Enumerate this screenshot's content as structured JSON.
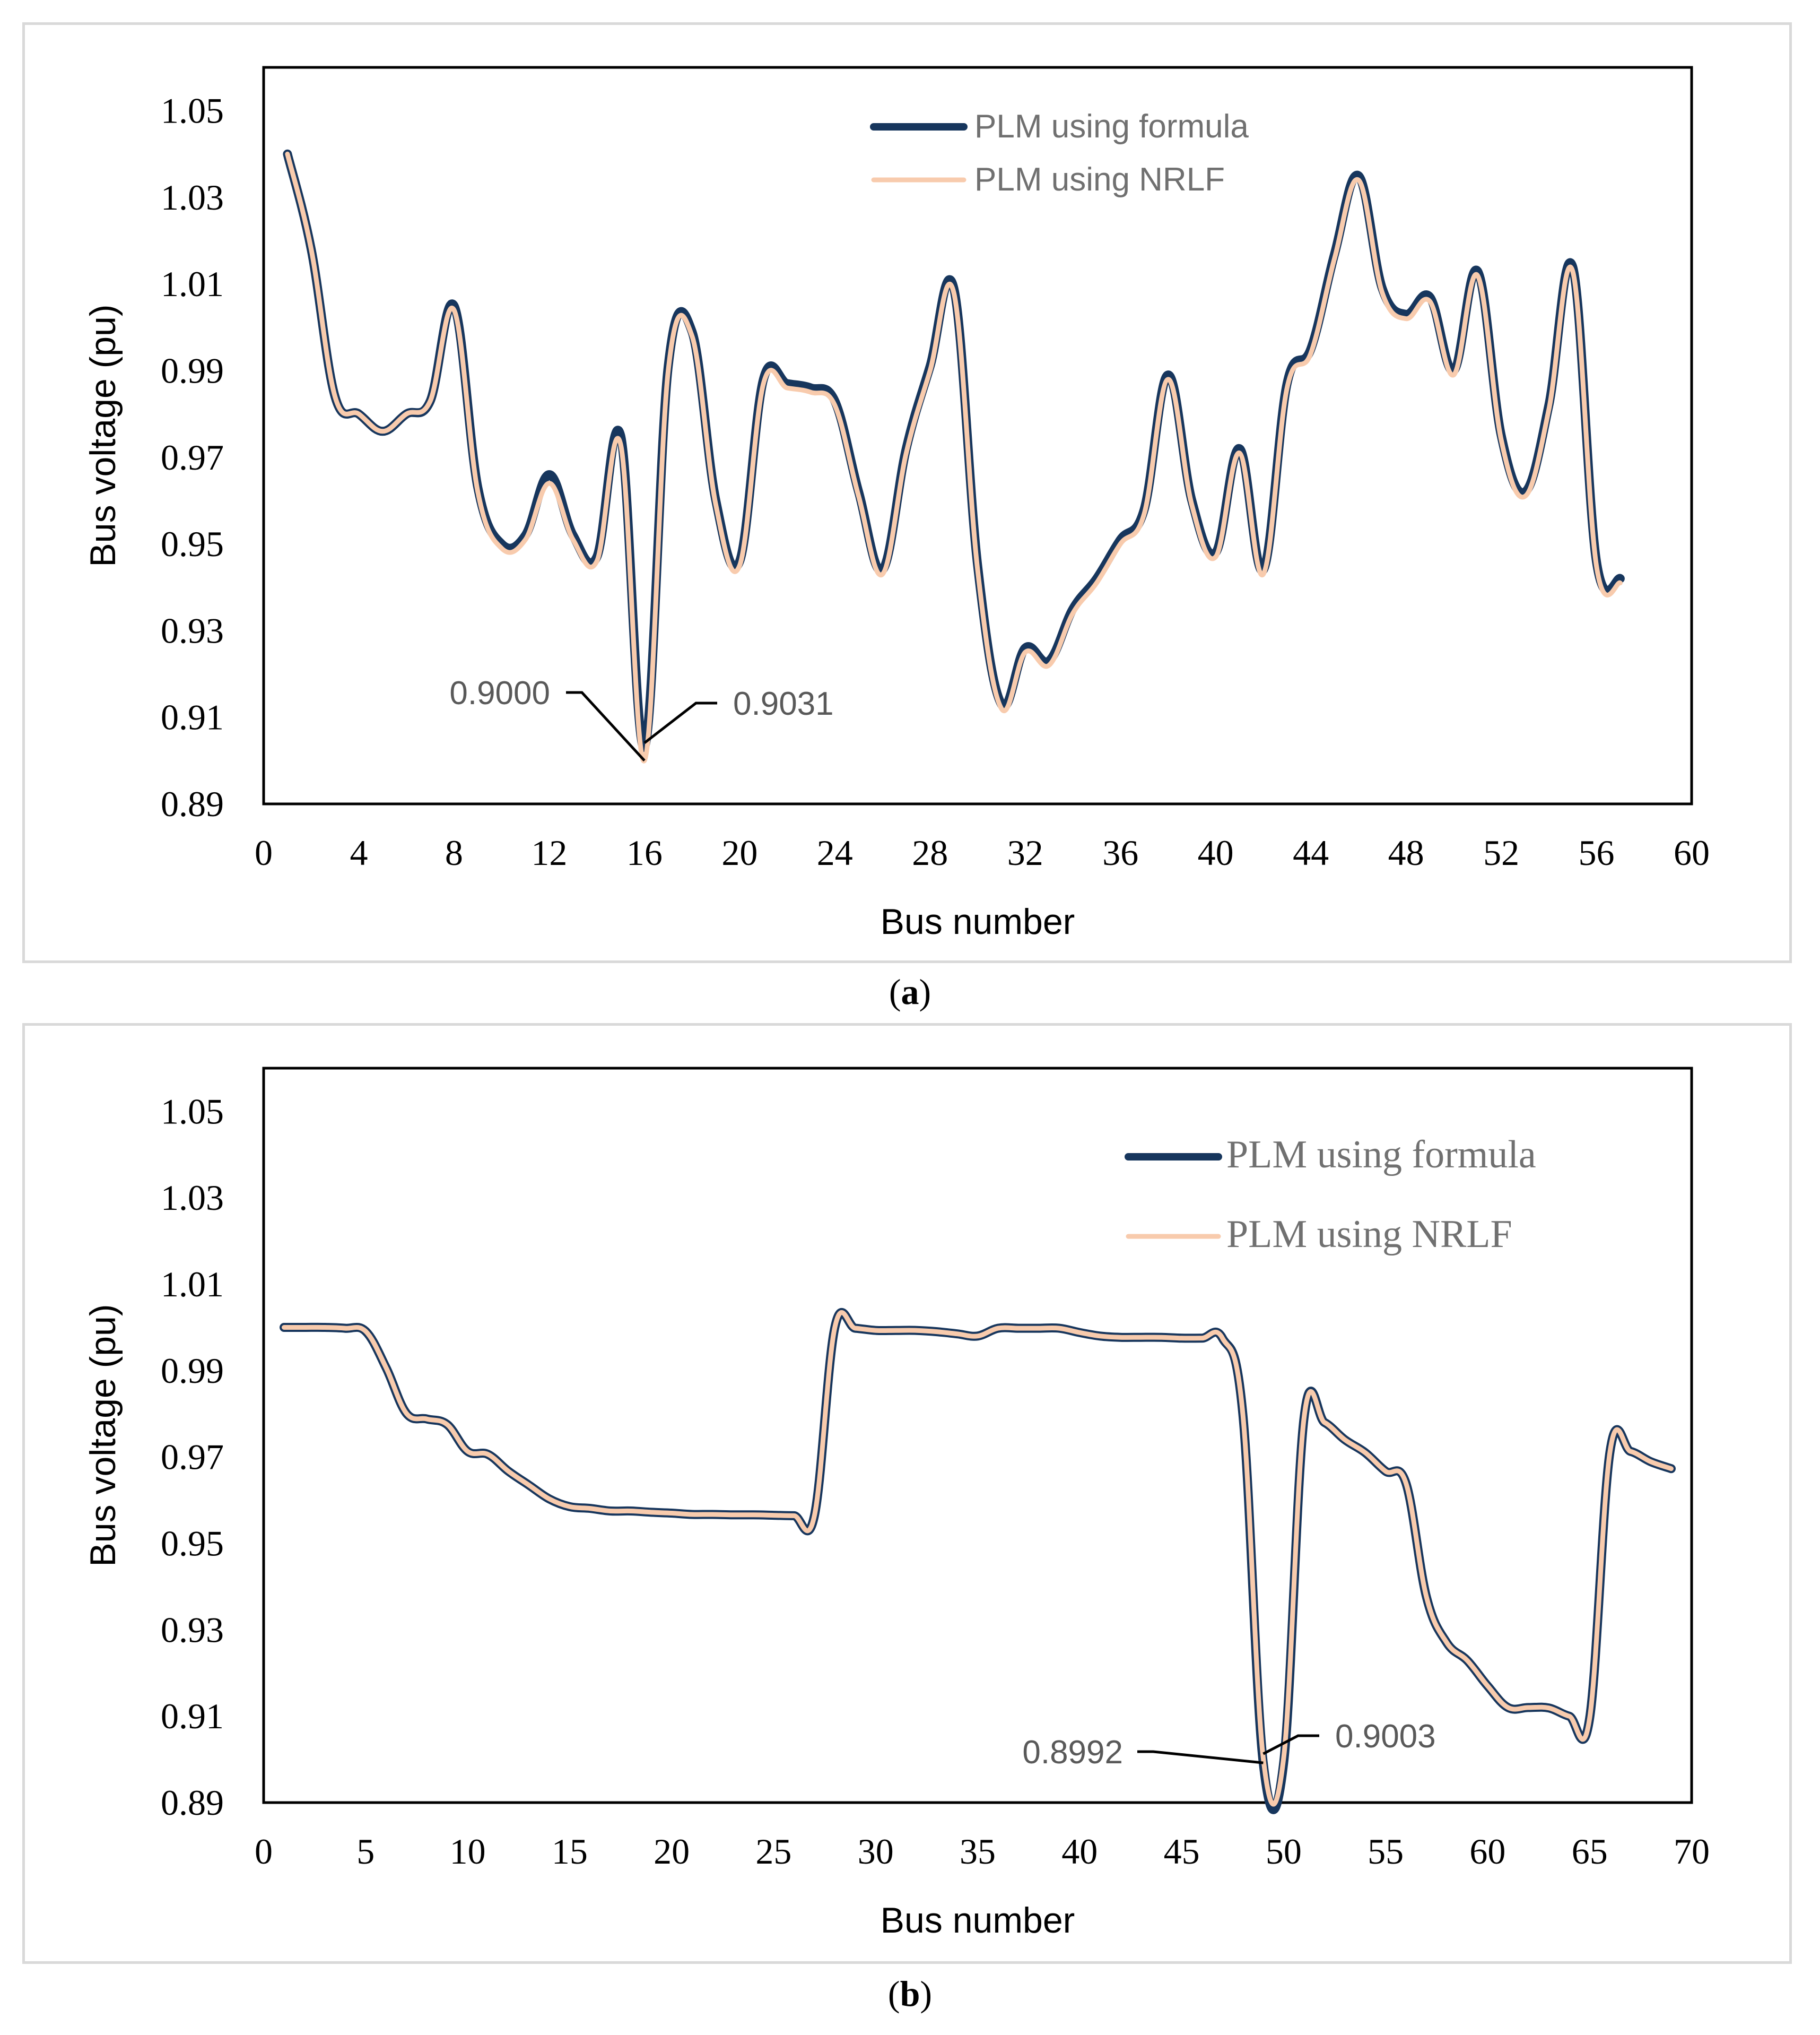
{
  "chart_data": [
    {
      "type": "line",
      "panel": "a",
      "caption_open": "(",
      "caption_letter": "a",
      "caption_close": ")",
      "xlabel": "Bus number",
      "ylabel": "Bus voltage (pu)",
      "xlim": [
        0,
        60
      ],
      "ylim": [
        0.89,
        1.06
      ],
      "xticks": [
        0,
        4,
        8,
        12,
        16,
        20,
        24,
        28,
        32,
        36,
        40,
        44,
        48,
        52,
        56,
        60
      ],
      "yticks": [
        "0.89",
        "0.91",
        "0.93",
        "0.95",
        "0.97",
        "0.99",
        "1.01",
        "1.03",
        "1.05"
      ],
      "legend_position": "top-center",
      "series": [
        {
          "name": "PLM using formula",
          "color": "#17365d",
          "x": [
            1,
            2,
            3,
            4,
            5,
            6,
            7,
            8,
            9,
            10,
            11,
            12,
            13,
            14,
            15,
            16,
            17,
            18,
            19,
            20,
            21,
            22,
            23,
            24,
            25,
            26,
            27,
            28,
            29,
            30,
            31,
            32,
            33,
            34,
            35,
            36,
            37,
            38,
            39,
            40,
            41,
            42,
            43,
            44,
            45,
            46,
            47,
            48,
            49,
            50,
            51,
            52,
            53,
            54,
            55,
            56,
            57
          ],
          "values": [
            1.04,
            1.018,
            0.984,
            0.98,
            0.976,
            0.98,
            0.983,
            1.005,
            0.963,
            0.95,
            0.952,
            0.966,
            0.952,
            0.947,
            0.975,
            0.9031,
            0.991,
            0.999,
            0.96,
            0.946,
            0.988,
            0.987,
            0.986,
            0.983,
            0.962,
            0.944,
            0.972,
            0.991,
            1.009,
            0.945,
            0.913,
            0.926,
            0.923,
            0.935,
            0.942,
            0.951,
            0.958,
            0.989,
            0.96,
            0.948,
            0.972,
            0.944,
            0.987,
            0.995,
            1.017,
            1.035,
            1.009,
            1.003,
            1.007,
            0.99,
            1.013,
            0.975,
            0.962,
            0.982,
            1.014,
            0.946,
            0.942
          ]
        },
        {
          "name": "PLM using NRLF",
          "color": "#f8cbad",
          "x": [
            1,
            2,
            3,
            4,
            5,
            6,
            7,
            8,
            9,
            10,
            11,
            12,
            13,
            14,
            15,
            16,
            17,
            18,
            19,
            20,
            21,
            22,
            23,
            24,
            25,
            26,
            27,
            28,
            29,
            30,
            31,
            32,
            33,
            34,
            35,
            36,
            37,
            38,
            39,
            40,
            41,
            42,
            43,
            44,
            45,
            46,
            47,
            48,
            49,
            50,
            51,
            52,
            53,
            54,
            55,
            56,
            57
          ],
          "values": [
            1.04,
            1.018,
            0.984,
            0.98,
            0.976,
            0.98,
            0.983,
            1.004,
            0.962,
            0.949,
            0.951,
            0.964,
            0.951,
            0.946,
            0.973,
            0.9,
            0.99,
            0.998,
            0.959,
            0.945,
            0.987,
            0.986,
            0.985,
            0.982,
            0.961,
            0.943,
            0.971,
            0.99,
            1.008,
            0.944,
            0.912,
            0.925,
            0.922,
            0.934,
            0.941,
            0.95,
            0.957,
            0.988,
            0.959,
            0.947,
            0.971,
            0.943,
            0.986,
            0.994,
            1.016,
            1.034,
            1.008,
            1.002,
            1.006,
            0.989,
            1.012,
            0.974,
            0.961,
            0.981,
            1.013,
            0.945,
            0.941
          ]
        }
      ],
      "annotations": [
        {
          "text": "0.9000",
          "x": 16,
          "y": 0.9,
          "side": "left"
        },
        {
          "text": "0.9031",
          "x": 16,
          "y": 0.9031,
          "side": "right"
        }
      ]
    },
    {
      "type": "line",
      "panel": "b",
      "caption_open": "(",
      "caption_letter": "b",
      "caption_close": ")",
      "xlabel": "Bus number",
      "ylabel": "Bus voltage (pu)",
      "xlim": [
        0,
        70
      ],
      "ylim": [
        0.89,
        1.06
      ],
      "xticks": [
        0,
        5,
        10,
        15,
        20,
        25,
        30,
        35,
        40,
        45,
        50,
        55,
        60,
        65,
        70
      ],
      "yticks": [
        "0.89",
        "0.91",
        "0.93",
        "0.95",
        "0.97",
        "0.99",
        "1.01",
        "1.03",
        "1.05"
      ],
      "legend_position": "top-right",
      "series": [
        {
          "name": "PLM using formula",
          "color": "#17365d",
          "x": [
            1,
            2,
            3,
            4,
            5,
            6,
            7,
            8,
            9,
            10,
            11,
            12,
            13,
            14,
            15,
            16,
            17,
            18,
            19,
            20,
            21,
            22,
            23,
            24,
            25,
            26,
            27,
            28,
            29,
            30,
            31,
            32,
            33,
            34,
            35,
            36,
            37,
            38,
            39,
            40,
            41,
            42,
            43,
            44,
            45,
            46,
            47,
            48,
            49,
            50,
            51,
            52,
            53,
            54,
            55,
            56,
            57,
            58,
            59,
            60,
            61,
            62,
            63,
            64,
            65,
            66,
            67,
            68,
            69
          ],
          "values": [
            1.0,
            1.0,
            1.0,
            0.9998,
            0.9991,
            0.9907,
            0.9801,
            0.9788,
            0.9775,
            0.9713,
            0.9706,
            0.9667,
            0.9635,
            0.9603,
            0.9585,
            0.9581,
            0.9575,
            0.9575,
            0.9572,
            0.957,
            0.9567,
            0.9567,
            0.9566,
            0.9566,
            0.9565,
            0.9564,
            0.9564,
            1.0,
            0.9998,
            0.9993,
            0.9993,
            0.9993,
            0.999,
            0.9985,
            0.998,
            0.9998,
            0.9998,
            0.9998,
            0.9998,
            0.9988,
            0.998,
            0.9977,
            0.9977,
            0.9977,
            0.9975,
            0.9975,
            0.9975,
            0.98,
            0.8992,
            0.8992,
            0.979,
            0.978,
            0.974,
            0.971,
            0.9667,
            0.9639,
            0.9376,
            0.927,
            0.9229,
            0.917,
            0.912,
            0.912,
            0.9119,
            0.91,
            0.9095,
            0.9713,
            0.9713,
            0.9689,
            0.9673
          ]
        },
        {
          "name": "PLM using NRLF",
          "color": "#f8cbad",
          "x": [
            1,
            2,
            3,
            4,
            5,
            6,
            7,
            8,
            9,
            10,
            11,
            12,
            13,
            14,
            15,
            16,
            17,
            18,
            19,
            20,
            21,
            22,
            23,
            24,
            25,
            26,
            27,
            28,
            29,
            30,
            31,
            32,
            33,
            34,
            35,
            36,
            37,
            38,
            39,
            40,
            41,
            42,
            43,
            44,
            45,
            46,
            47,
            48,
            49,
            50,
            51,
            52,
            53,
            54,
            55,
            56,
            57,
            58,
            59,
            60,
            61,
            62,
            63,
            64,
            65,
            66,
            67,
            68,
            69
          ],
          "values": [
            1.0,
            1.0,
            1.0,
            0.9998,
            0.9991,
            0.9907,
            0.9801,
            0.9788,
            0.9775,
            0.9713,
            0.9706,
            0.9667,
            0.9635,
            0.9603,
            0.9585,
            0.9581,
            0.9575,
            0.9575,
            0.9572,
            0.957,
            0.9567,
            0.9567,
            0.9566,
            0.9566,
            0.9565,
            0.9564,
            0.9564,
            1.0,
            0.9998,
            0.9993,
            0.9993,
            0.9993,
            0.999,
            0.9985,
            0.998,
            0.9998,
            0.9998,
            0.9998,
            0.9998,
            0.9988,
            0.998,
            0.9977,
            0.9977,
            0.9977,
            0.9975,
            0.9975,
            0.9975,
            0.98,
            0.9003,
            0.9003,
            0.979,
            0.978,
            0.974,
            0.971,
            0.9667,
            0.9639,
            0.9376,
            0.927,
            0.9229,
            0.917,
            0.912,
            0.912,
            0.9119,
            0.91,
            0.9095,
            0.9713,
            0.9713,
            0.9689,
            0.9673
          ]
        }
      ],
      "annotations": [
        {
          "text": "0.8992",
          "x": 49,
          "y": 0.8992,
          "side": "left"
        },
        {
          "text": "0.9003",
          "x": 49,
          "y": 0.9003,
          "side": "right"
        }
      ]
    }
  ]
}
